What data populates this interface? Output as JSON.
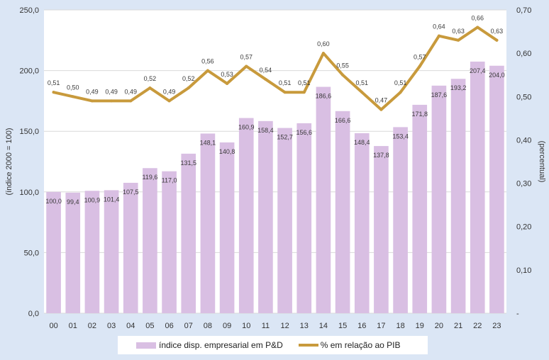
{
  "chart_data": {
    "type": "bar+line",
    "categories": [
      "00",
      "01",
      "02",
      "03",
      "04",
      "05",
      "06",
      "07",
      "08",
      "09",
      "10",
      "11",
      "12",
      "13",
      "14",
      "15",
      "16",
      "17",
      "18",
      "19",
      "20",
      "21",
      "22",
      "23"
    ],
    "series": [
      {
        "name": "índice disp. empresarial em P&D",
        "type": "bar",
        "axis": "left",
        "values": [
          100.0,
          99.4,
          100.9,
          101.4,
          107.5,
          119.6,
          117.0,
          131.5,
          148.1,
          140.8,
          160.9,
          158.4,
          152.7,
          156.6,
          186.6,
          166.6,
          148.4,
          137.8,
          153.4,
          171.8,
          187.6,
          193.2,
          207.4,
          204.0
        ],
        "labels": [
          "100,0",
          "99,4",
          "100,9",
          "101,4",
          "107,5",
          "119,6",
          "117,0",
          "131,5",
          "148,1",
          "140,8",
          "160,9",
          "158,4",
          "152,7",
          "156,6",
          "186,6",
          "166,6",
          "148,4",
          "137,8",
          "153,4",
          "171,8",
          "187,6",
          "193,2",
          "207,4",
          "204,0"
        ],
        "color": "#d9bfe3"
      },
      {
        "name": "% em relação ao PIB",
        "type": "line",
        "axis": "right",
        "values": [
          0.51,
          0.5,
          0.49,
          0.49,
          0.49,
          0.52,
          0.49,
          0.52,
          0.56,
          0.53,
          0.57,
          0.54,
          0.51,
          0.51,
          0.6,
          0.55,
          0.51,
          0.47,
          0.51,
          0.57,
          0.64,
          0.63,
          0.66,
          0.63
        ],
        "labels": [
          "0,51",
          "0,50",
          "0,49",
          "0,49",
          "0,49",
          "0,52",
          "0,49",
          "0,52",
          "0,56",
          "0,53",
          "0,57",
          "0,54",
          "0,51",
          "0,51",
          "0,60",
          "0,55",
          "0,51",
          "0,47",
          "0,51",
          "0,57",
          "0,64",
          "0,63",
          "0,66",
          "0,63"
        ],
        "color": "#c89a3c"
      }
    ],
    "left_axis": {
      "label": "(índice 2000 = 100)",
      "ylim": [
        0,
        250
      ],
      "ticks": [
        0,
        50,
        100,
        150,
        200,
        250
      ],
      "tick_labels": [
        "0,0",
        "50,0",
        "100,0",
        "150,0",
        "200,0",
        "250,0"
      ]
    },
    "right_axis": {
      "label": "(percentual)",
      "ylim": [
        0,
        0.7
      ],
      "ticks": [
        0,
        0.1,
        0.2,
        0.3,
        0.4,
        0.5,
        0.6,
        0.7
      ],
      "tick_labels": [
        "-",
        "0,10",
        "0,20",
        "0,30",
        "0,40",
        "0,50",
        "0,60",
        "0,70"
      ]
    },
    "legend": {
      "position": "bottom-center",
      "bar_label": "índice disp. empresarial em P&D",
      "line_label": "% em relação ao PIB"
    },
    "grid": "horizontal"
  }
}
